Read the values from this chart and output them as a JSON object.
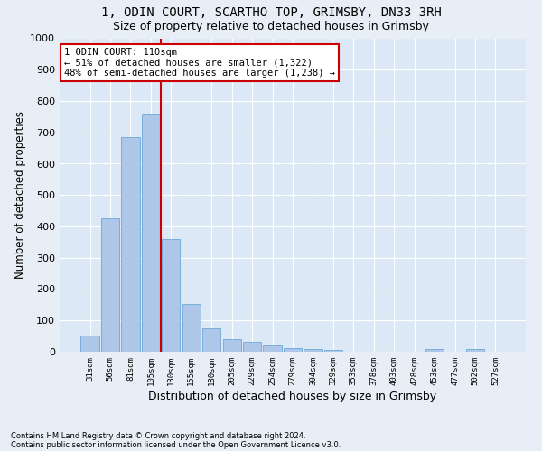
{
  "title1": "1, ODIN COURT, SCARTHO TOP, GRIMSBY, DN33 3RH",
  "title2": "Size of property relative to detached houses in Grimsby",
  "xlabel": "Distribution of detached houses by size in Grimsby",
  "ylabel": "Number of detached properties",
  "footnote1": "Contains HM Land Registry data © Crown copyright and database right 2024.",
  "footnote2": "Contains public sector information licensed under the Open Government Licence v3.0.",
  "annotation_line1": "1 ODIN COURT: 110sqm",
  "annotation_line2": "← 51% of detached houses are smaller (1,322)",
  "annotation_line3": "48% of semi-detached houses are larger (1,238) →",
  "categories": [
    "31sqm",
    "56sqm",
    "81sqm",
    "105sqm",
    "130sqm",
    "155sqm",
    "180sqm",
    "205sqm",
    "229sqm",
    "254sqm",
    "279sqm",
    "304sqm",
    "329sqm",
    "353sqm",
    "378sqm",
    "403sqm",
    "428sqm",
    "453sqm",
    "477sqm",
    "502sqm",
    "527sqm"
  ],
  "values": [
    52,
    425,
    685,
    760,
    360,
    152,
    75,
    40,
    32,
    20,
    12,
    8,
    7,
    0,
    0,
    0,
    0,
    8,
    0,
    8,
    0
  ],
  "bar_color": "#aec6e8",
  "bar_edge_color": "#5a9fd4",
  "vline_x": 3.5,
  "vline_color": "#cc0000",
  "annotation_box_color": "#ffffff",
  "annotation_box_edge_color": "#cc0000",
  "ylim": [
    0,
    1000
  ],
  "yticks": [
    0,
    100,
    200,
    300,
    400,
    500,
    600,
    700,
    800,
    900,
    1000
  ],
  "bg_color": "#e8eef5",
  "plot_bg_color": "#dce8f5",
  "grid_color": "#ffffff",
  "title1_fontsize": 10,
  "title2_fontsize": 9,
  "xlabel_fontsize": 9,
  "ylabel_fontsize": 8.5
}
